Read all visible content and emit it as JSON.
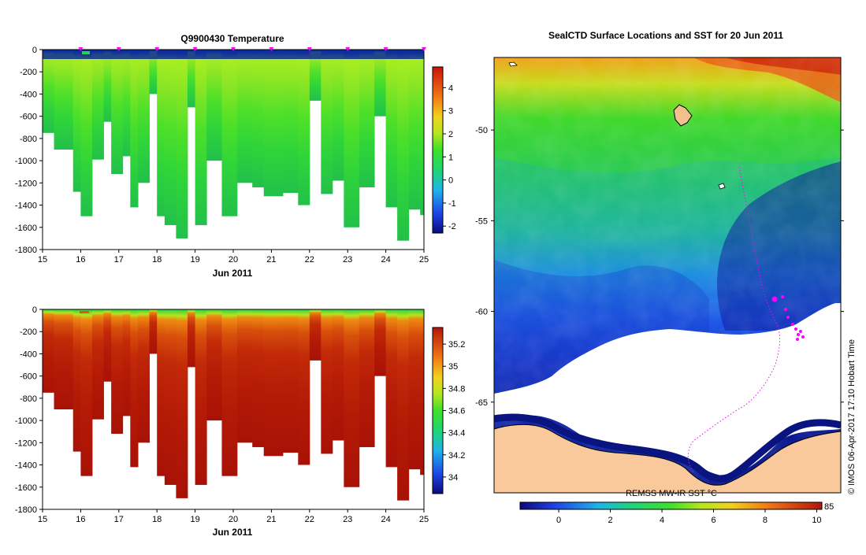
{
  "chart_data": [
    {
      "type": "heatmap",
      "title": "Q9900430  Temperature",
      "xlabel": "Jun 2011",
      "ylabel": "",
      "x_ticks": [
        "15",
        "16",
        "17",
        "18",
        "19",
        "20",
        "21",
        "22",
        "23",
        "24",
        "25"
      ],
      "xlim": [
        15,
        25
      ],
      "y_ticks": [
        "0",
        "-200",
        "-400",
        "-600",
        "-800",
        "-1000",
        "-1200",
        "-1400",
        "-1600",
        "-1800"
      ],
      "ylim": [
        -1800,
        0
      ],
      "colorbar_ticks": [
        "4",
        "3",
        "2",
        "1",
        "0",
        "-1",
        "-2"
      ],
      "colorbar_range": [
        -2.3,
        4.9
      ],
      "profile_max_depths": [
        {
          "day": 15.0,
          "depth": -750
        },
        {
          "day": 15.3,
          "depth": -900
        },
        {
          "day": 15.8,
          "depth": -1280
        },
        {
          "day": 16.0,
          "depth": -1500
        },
        {
          "day": 16.3,
          "depth": -990
        },
        {
          "day": 16.6,
          "depth": -650
        },
        {
          "day": 16.8,
          "depth": -1120
        },
        {
          "day": 17.1,
          "depth": -960
        },
        {
          "day": 17.3,
          "depth": -1420
        },
        {
          "day": 17.5,
          "depth": -1200
        },
        {
          "day": 17.8,
          "depth": -400
        },
        {
          "day": 18.0,
          "depth": -1500
        },
        {
          "day": 18.2,
          "depth": -1580
        },
        {
          "day": 18.5,
          "depth": -1700
        },
        {
          "day": 18.8,
          "depth": -520
        },
        {
          "day": 19.0,
          "depth": -1580
        },
        {
          "day": 19.3,
          "depth": -1000
        },
        {
          "day": 19.7,
          "depth": -1500
        },
        {
          "day": 20.1,
          "depth": -1200
        },
        {
          "day": 20.5,
          "depth": -1240
        },
        {
          "day": 20.8,
          "depth": -1320
        },
        {
          "day": 21.3,
          "depth": -1290
        },
        {
          "day": 21.7,
          "depth": -1400
        },
        {
          "day": 22.0,
          "depth": -460
        },
        {
          "day": 22.3,
          "depth": -1300
        },
        {
          "day": 22.6,
          "depth": -1180
        },
        {
          "day": 22.9,
          "depth": -1600
        },
        {
          "day": 23.3,
          "depth": -1240
        },
        {
          "day": 23.7,
          "depth": -600
        },
        {
          "day": 24.0,
          "depth": -1420
        },
        {
          "day": 24.3,
          "depth": -1720
        },
        {
          "day": 24.6,
          "depth": -1440
        },
        {
          "day": 24.9,
          "depth": -1490
        }
      ]
    },
    {
      "type": "heatmap",
      "title": "",
      "xlabel": "Jun 2011",
      "ylabel": "",
      "x_ticks": [
        "15",
        "16",
        "17",
        "18",
        "19",
        "20",
        "21",
        "22",
        "23",
        "24",
        "25"
      ],
      "xlim": [
        15,
        25
      ],
      "y_ticks": [
        "0",
        "-200",
        "-400",
        "-600",
        "-800",
        "-1000",
        "-1200",
        "-1400",
        "-1600",
        "-1800"
      ],
      "ylim": [
        -1800,
        0
      ],
      "colorbar_ticks": [
        "35.2",
        "35",
        "34.8",
        "34.6",
        "34.4",
        "34.2",
        "34"
      ],
      "colorbar_range": [
        33.85,
        35.35
      ]
    },
    {
      "type": "heatmap",
      "title": "SealCTD Surface Locations and SST for 20 Jun 2011",
      "y_ticks": [
        "-50",
        "-55",
        "-60",
        "-65"
      ],
      "ylim": [
        -70,
        -46
      ],
      "colorbar_label": "REMSS MW-IR SST °C",
      "colorbar_ticks": [
        "0",
        "2",
        "4",
        "6",
        "8",
        "10"
      ],
      "colorbar_range": [
        -1.5,
        10.2
      ],
      "colorbar_top_ticks": [
        "85"
      ],
      "side_label": "© IMOS 06-Apr-2017 17:10 Hobart Time"
    }
  ],
  "colors": {
    "land": "#f9c89b",
    "track": "#ff00ff",
    "background": "#ffffff"
  }
}
